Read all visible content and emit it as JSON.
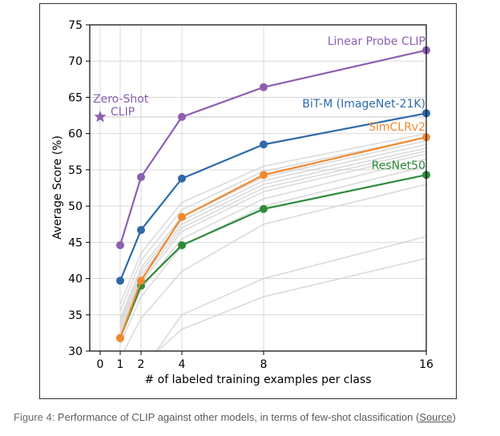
{
  "chart_data": {
    "type": "line",
    "xlabel": "# of labeled training examples per class",
    "ylabel": "Average Score (%)",
    "xlim": [
      0,
      16
    ],
    "ylim": [
      30,
      75
    ],
    "x_ticks": [
      0,
      1,
      2,
      4,
      8,
      16
    ],
    "y_ticks": [
      30,
      35,
      40,
      45,
      50,
      55,
      60,
      65,
      70,
      75
    ],
    "grid": true,
    "series": [
      {
        "name": "Linear Probe CLIP",
        "color": "#8c5fb0",
        "x": [
          1,
          2,
          4,
          8,
          16
        ],
        "values": [
          44.6,
          54.0,
          62.3,
          66.4,
          71.5
        ]
      },
      {
        "name": "BiT-M (ImageNet-21K)",
        "color": "#2f6aa8",
        "x": [
          1,
          2,
          4,
          8,
          16
        ],
        "values": [
          39.7,
          46.7,
          53.8,
          58.5,
          62.8
        ]
      },
      {
        "name": "SimCLRv2",
        "color": "#f08a30",
        "x": [
          1,
          2,
          4,
          8,
          16
        ],
        "values": [
          31.8,
          39.7,
          48.5,
          54.3,
          59.5
        ]
      },
      {
        "name": "ResNet50",
        "color": "#2e8b3a",
        "x": [
          1,
          2,
          4,
          8,
          16
        ],
        "values": [
          31.8,
          39.0,
          44.6,
          49.6,
          54.3
        ]
      }
    ],
    "zero_shot": {
      "label_line1": "Zero-Shot",
      "label_line2": "CLIP",
      "value": 62.3,
      "x": 0,
      "color": "#8c5fb0"
    },
    "background_series": [
      [
        36.5,
        43.5,
        50.5,
        55.5,
        60.0
      ],
      [
        35.5,
        42.5,
        49.5,
        54.8,
        59.5
      ],
      [
        34.5,
        41.5,
        48.5,
        54.0,
        59.0
      ],
      [
        34.0,
        41.0,
        48.0,
        53.5,
        58.5
      ],
      [
        33.5,
        40.5,
        47.5,
        53.0,
        58.0
      ],
      [
        33.0,
        40.0,
        47.0,
        52.5,
        57.6
      ],
      [
        32.5,
        39.5,
        46.5,
        52.0,
        57.2
      ],
      [
        32.0,
        38.5,
        45.5,
        51.0,
        56.5
      ],
      [
        31.0,
        37.5,
        44.5,
        50.0,
        55.5
      ],
      [
        29.0,
        34.5,
        41.0,
        47.5,
        53.0
      ],
      [
        25.0,
        28.0,
        33.0,
        37.5,
        42.8
      ],
      [
        24.0,
        27.0,
        35.0,
        40.0,
        45.8
      ]
    ]
  },
  "caption": {
    "lead": "Figure 4:",
    "text": " Performance of CLIP against other models, in terms of few-shot classification (",
    "source_link": "Source",
    "close": ")"
  }
}
